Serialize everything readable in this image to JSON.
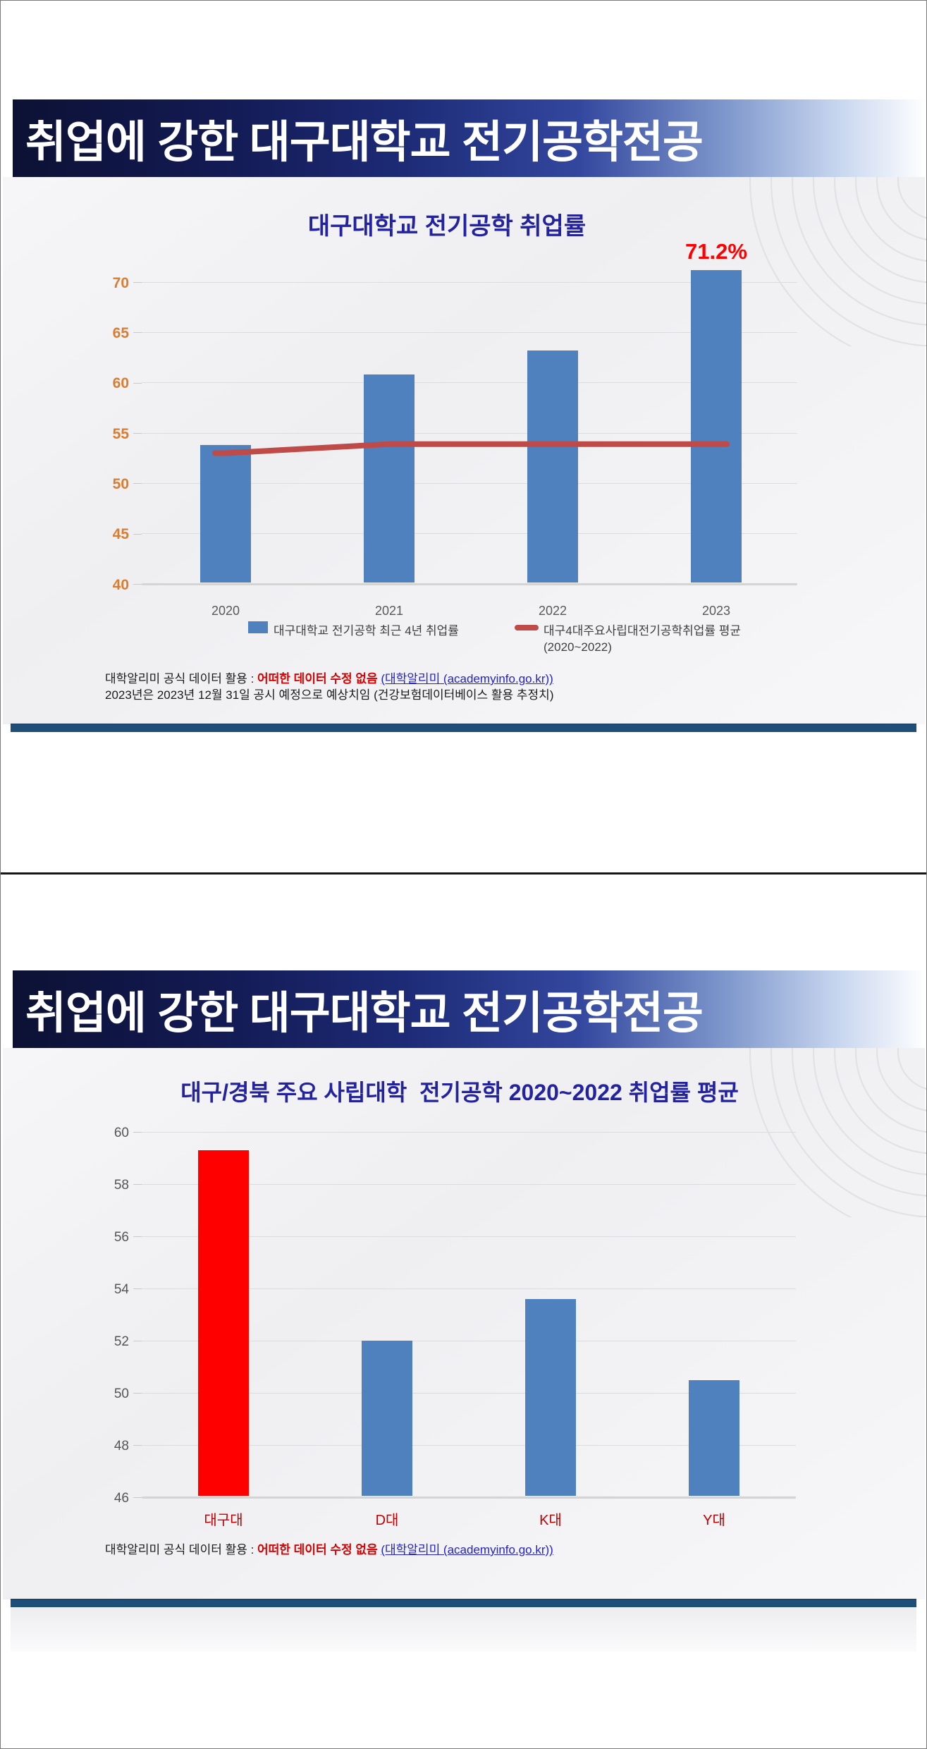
{
  "colors": {
    "bar_blue": "#4E81BD",
    "bar_red": "#FF0000",
    "trend_line_red": "#BE4B48",
    "ytick_orange": "#DC7C2E",
    "ytick_gray": "#555555",
    "xtick_gray": "#595959",
    "xtick_red": "#C00000",
    "title_navy": "#23239F",
    "data_label_red": "#FF0000",
    "navy_divider": "#1F4E79"
  },
  "slides": [
    {
      "header_title": "취업에 강한 대구대학교 전기공학전공",
      "chart_title": "대구대학교 전기공학 취업률",
      "legend": {
        "bar_label": "대구대학교 전기공학 최근 4년 취업률",
        "line_label": "대구4대주요사립대전기공학취업률 평균",
        "line_sub": "(2020~2022)"
      },
      "footnote": {
        "prefix": "대학알리미 공식 데이터 활용 : ",
        "red": "어떠한 데이터 수정 없음",
        "sep": " ",
        "link": "(대학알리미 (academyinfo.go.kr))",
        "line2": "2023년은 2023년 12월 31일 공시 예정으로 예상치임 (건강보험데이터베이스 활용 추정치)"
      }
    },
    {
      "header_title": "취업에 강한 대구대학교 전기공학전공",
      "chart_title": "대구/경북 주요 사립대학  전기공학 2020~2022 취업률 평균",
      "footnote": {
        "prefix": "대학알리미 공식 데이터 활용 : ",
        "red": "어떠한 데이터 수정 없음",
        "sep": " ",
        "link": "(대학알리미 (academyinfo.go.kr))"
      }
    }
  ],
  "chart_data": [
    {
      "type": "bar",
      "title": "대구대학교 전기공학 취업률",
      "categories": [
        "2020",
        "2021",
        "2022",
        "2023"
      ],
      "series": [
        {
          "name": "대구대학교 전기공학 최근 4년 취업률",
          "type": "bar",
          "values": [
            53.8,
            60.8,
            63.2,
            71.2
          ],
          "color": "#4E81BD",
          "data_labels": [
            null,
            null,
            null,
            "71.2%"
          ]
        },
        {
          "name": "대구4대주요사립대전기공학취업률 평균 (2020~2022)",
          "type": "line",
          "values": [
            53.0,
            53.9,
            53.9,
            53.9
          ],
          "color": "#BE4B48"
        }
      ],
      "ylim": [
        40,
        70
      ],
      "yticks": [
        40,
        45,
        50,
        55,
        60,
        65,
        70
      ],
      "ytick_color": "#DC7C2E",
      "xtick_color": "#595959",
      "grid": true,
      "legend_position": "bottom"
    },
    {
      "type": "bar",
      "title": "대구/경북 주요 사립대학  전기공학 2020~2022 취업률 평균",
      "categories": [
        "대구대",
        "D대",
        "K대",
        "Y대"
      ],
      "values": [
        59.3,
        52.0,
        53.6,
        50.5
      ],
      "bar_colors": [
        "#FF0000",
        "#4E81BD",
        "#4E81BD",
        "#4E81BD"
      ],
      "ylim": [
        46,
        60
      ],
      "yticks": [
        46,
        48,
        50,
        52,
        54,
        56,
        58,
        60
      ],
      "ytick_color": "#555555",
      "xtick_color": "#C00000",
      "grid": true,
      "legend_position": "none"
    }
  ]
}
